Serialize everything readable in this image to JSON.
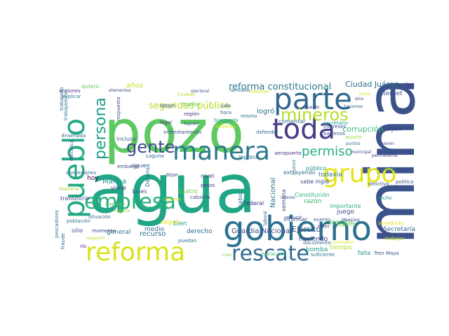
{
  "words": [
    {
      "text": "agua",
      "color": "#21a685"
    },
    {
      "text": "pozo",
      "color": "#5ec962"
    },
    {
      "text": "mina",
      "color": "#3b528b"
    },
    {
      "text": "gobierno",
      "color": "#2c728e"
    },
    {
      "text": "reforma",
      "color": "#d8e219"
    },
    {
      "text": "toda",
      "color": "#433e85"
    },
    {
      "text": "manera",
      "color": "#2a788e"
    },
    {
      "text": "parte",
      "color": "#31688e"
    },
    {
      "text": "pueblo",
      "color": "#22a884"
    },
    {
      "text": "grupo",
      "color": "#e5e419"
    },
    {
      "text": "empresa",
      "color": "#2ab07f"
    },
    {
      "text": "rescate",
      "color": "#31688e"
    },
    {
      "text": "mineros",
      "color": "#b5de2b"
    },
    {
      "text": "gente",
      "color": "#3e4989"
    },
    {
      "text": "persona",
      "color": "#1f9e89"
    },
    {
      "text": "permiso",
      "color": "#27ad81"
    },
    {
      "text": "seguridad pública",
      "color": "#b5de2b"
    },
    {
      "text": "reforma constitucional",
      "color": "#2a788e"
    },
    {
      "text": "Ciudad Juárez",
      "color": "#2c728e"
    },
    {
      "text": "internet",
      "color": "#3b528b"
    },
    {
      "text": "corrupción",
      "color": "#35b779"
    },
    {
      "text": "años",
      "color": "#c8e020"
    },
    {
      "text": "quiero",
      "color": "#65cb5e"
    },
    {
      "text": "hoy",
      "color": "#440154"
    },
    {
      "text": "lunes",
      "color": "#3b528b"
    },
    {
      "text": "incluso",
      "color": "#31688e"
    },
    {
      "text": "trabajo",
      "color": "#5ec962"
    },
    {
      "text": "logró",
      "color": "#2c728e"
    },
    {
      "text": "comentar",
      "color": "#31688e"
    },
    {
      "text": "secretario",
      "color": "#1f9e89"
    },
    {
      "text": "intereses",
      "color": "#3b528b"
    },
    {
      "text": "acciones",
      "color": "#46327e"
    },
    {
      "text": "Marina",
      "color": "#21918c"
    },
    {
      "text": "Defensa",
      "color": "#2c728e"
    },
    {
      "text": "cuatro",
      "color": "#7ad151"
    },
    {
      "text": "mañana",
      "color": "#a0da39"
    },
    {
      "text": "transitorio",
      "color": "#3e4989"
    },
    {
      "text": "Nacional",
      "color": "#2a788e"
    },
    {
      "text": "semana",
      "color": "#3e4989"
    },
    {
      "text": "razón",
      "color": "#35b779"
    },
    {
      "text": "Constitución",
      "color": "#2ab07f"
    },
    {
      "text": "Ejército",
      "color": "#3b528b"
    },
    {
      "text": "Guardia Nacional",
      "color": "#3e4989"
    },
    {
      "text": "derecho",
      "color": "#31688e"
    },
    {
      "text": "haciendo",
      "color": "#443983"
    },
    {
      "text": "Secretaría",
      "color": "#31688e"
    },
    {
      "text": "bomba",
      "color": "#1f9e89"
    },
    {
      "text": "tiempo",
      "color": "#b5de2b"
    },
    {
      "text": "falta",
      "color": "#21918c"
    },
    {
      "text": "Tren Maya",
      "color": "#3b528b"
    },
    {
      "text": "extracción",
      "color": "#35b779"
    },
    {
      "text": "suficiente",
      "color": "#2a788e"
    },
    {
      "text": "acueducto",
      "color": "#e5e419"
    },
    {
      "text": "trabajar",
      "color": "#c8e020"
    },
    {
      "text": "política",
      "color": "#3b528b"
    },
    {
      "text": "poder",
      "color": "#2a788e"
    },
    {
      "text": "delictivo",
      "color": "#3b528b"
    },
    {
      "text": "hecho",
      "color": "#21918c"
    },
    {
      "text": "juego",
      "color": "#3e4989"
    },
    {
      "text": "ejemplo",
      "color": "#5ec962"
    },
    {
      "text": "importante",
      "color": "#2ab07f"
    },
    {
      "text": "recurso",
      "color": "#2c728e"
    },
    {
      "text": "medio",
      "color": "#31688e"
    },
    {
      "text": "bien",
      "color": "#1f9e89"
    },
    {
      "text": "seguir",
      "color": "#e5e419"
    },
    {
      "text": "general",
      "color": "#2c728e"
    },
    {
      "text": "sólo",
      "color": "#3b528b"
    },
    {
      "text": "río",
      "color": "#482878"
    },
    {
      "text": "momento",
      "color": "#3e4989"
    },
    {
      "text": "situación",
      "color": "#31688e"
    },
    {
      "text": "población",
      "color": "#2a788e"
    },
    {
      "text": "todavía",
      "color": "#2c728e"
    },
    {
      "text": "público",
      "color": "#21918c"
    },
    {
      "text": "sabe inglé",
      "color": "#3e4989"
    },
    {
      "text": "espacio",
      "color": "#6ece58"
    },
    {
      "text": "informar",
      "color": "#3b528b"
    },
    {
      "text": "federal",
      "color": "#46327e"
    },
    {
      "text": "cabo",
      "color": "#31688e"
    },
    {
      "text": "nivel",
      "color": "#3e4989"
    },
    {
      "text": "ingreso",
      "color": "#2a788e"
    },
    {
      "text": "viene",
      "color": "#443983"
    },
    {
      "text": "respuesta",
      "color": "#3b528b"
    },
    {
      "text": "apoyo",
      "color": "#3e4989"
    },
    {
      "text": "región",
      "color": "#46327e"
    },
    {
      "text": "hora",
      "color": "#31688e"
    },
    {
      "text": "mismo",
      "color": "#2c728e"
    },
    {
      "text": "búsqueda",
      "color": "#1f9e89"
    },
    {
      "text": "millones",
      "color": "#d8e219"
    },
    {
      "text": "aeropuerto",
      "color": "#46327e"
    },
    {
      "text": "extrayendo",
      "color": "#2c728e"
    },
    {
      "text": "barrenos",
      "color": "#3b528b"
    },
    {
      "text": "asunto",
      "color": "#a0da39"
    },
    {
      "text": "evento",
      "color": "#31688e"
    },
    {
      "text": "mejor",
      "color": "#443983"
    },
    {
      "text": "Mexicles",
      "color": "#3e4989"
    },
    {
      "text": "siguen",
      "color": "#46327e"
    },
    {
      "text": "puntos",
      "color": "#2c728e"
    },
    {
      "text": "quieren",
      "color": "#3b528b"
    },
    {
      "text": "tipo",
      "color": "#46327e"
    },
    {
      "text": "sabe",
      "color": "#3e4989"
    },
    {
      "text": "hacemos",
      "color": "#31688e"
    },
    {
      "text": "acuerdo",
      "color": "#443983"
    },
    {
      "text": "electoral",
      "color": "#3b528b"
    },
    {
      "text": "familiares",
      "color": "#31688e"
    },
    {
      "text": "elementos",
      "color": "#3e4989"
    },
    {
      "text": "explicar",
      "color": "#2a788e"
    },
    {
      "text": "Ensenada",
      "color": "#31688e"
    },
    {
      "text": "eléctrica",
      "color": "#3b528b"
    },
    {
      "text": "caballos",
      "color": "#3e4989"
    },
    {
      "text": "pesos",
      "color": "#46327e"
    },
    {
      "text": "Laguna",
      "color": "#31688e"
    },
    {
      "text": "dejar",
      "color": "#3e4989"
    },
    {
      "text": "puedan",
      "color": "#2c728e"
    },
    {
      "text": "reducir",
      "color": "#3b528b"
    },
    {
      "text": "documento",
      "color": "#31688e"
    },
    {
      "text": "municipal",
      "color": "#3e4989"
    },
    {
      "text": "permanente",
      "color": "#443983"
    },
    {
      "text": "siempre",
      "color": "#5ec962"
    },
    {
      "text": "enfrentamiento",
      "color": "#3b528b"
    },
    {
      "text": "defender",
      "color": "#31688e"
    },
    {
      "text": "legal",
      "color": "#46327e"
    },
    {
      "text": "hacen",
      "color": "#3e4989"
    },
    {
      "text": "trabajadores",
      "color": "#2a788e"
    },
    {
      "text": "sigue",
      "color": "#3b528b"
    },
    {
      "text": "embargo",
      "color": "#443983"
    },
    {
      "text": "fraude",
      "color": "#31688e"
    },
    {
      "text": "pescadores",
      "color": "#2c728e"
    },
    {
      "text": "concesiones",
      "color": "#31688e"
    },
    {
      "text": "interior",
      "color": "#c8e020"
    },
    {
      "text": "Ciudad",
      "color": "#b5de2b"
    },
    {
      "text": "informe",
      "color": "#d8e219"
    },
    {
      "text": "creo",
      "color": "#7ad151"
    },
    {
      "text": "reporte",
      "color": "#a0da39"
    },
    {
      "text": "interés",
      "color": "#3b528b"
    },
    {
      "text": "nuevo",
      "color": "#2a788e"
    },
    {
      "text": "trabajado",
      "color": "#31688e"
    },
    {
      "text": "respecto",
      "color": "#b5de2b"
    },
    {
      "text": "concesión",
      "color": "#d8e219"
    },
    {
      "text": "laboral",
      "color": "#3e4989"
    },
    {
      "text": "sino",
      "color": "#46327e"
    },
    {
      "text": "tanto",
      "color": "#d8e219"
    }
  ]
}
